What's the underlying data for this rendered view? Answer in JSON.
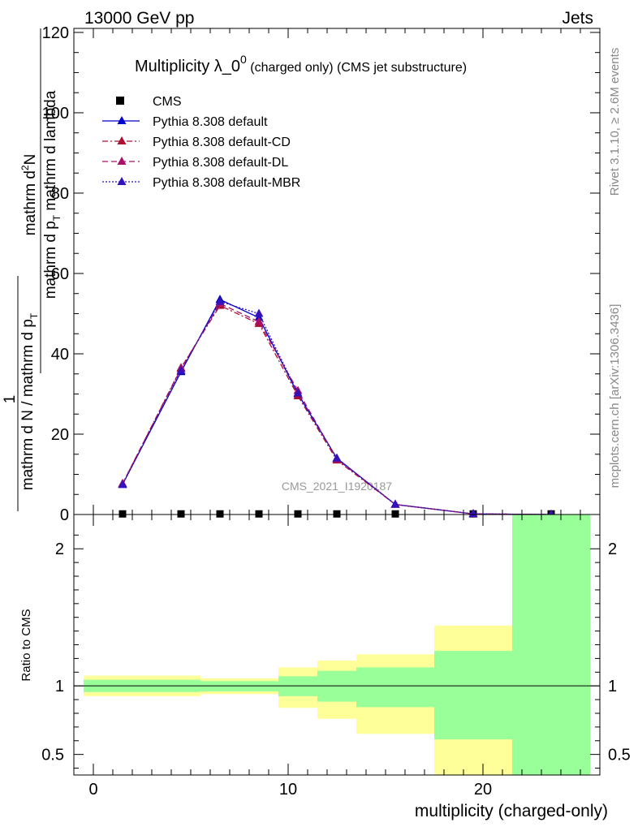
{
  "header": {
    "left": "13000 GeV pp",
    "right": "Jets"
  },
  "side_labels": {
    "rivet": "Rivet 3.1.10, ≥ 2.6M events",
    "mcplots": "mcplots.cern.ch [arXiv:1306.3436]"
  },
  "chart_data": [
    {
      "type": "line",
      "title": "Multiplicity λ_0",
      "title_sup": "0",
      "title_suffix": " (charged only) (CMS jet substructure)",
      "analysis_label": "CMS_2021_I1920187",
      "ylabel": {
        "numerator": "mathrm d",
        "numerator_sup": "2",
        "numerator_rest": "N",
        "denominator": "mathrm d p",
        "denominator_sub": "T",
        "denominator_rest": " mathrm d lambda",
        "prefix_numerator": "1",
        "prefix_denominator": "mathrm d N / mathrm d p",
        "prefix_denominator_sub": "T"
      },
      "xlim": [
        -1,
        26
      ],
      "ylim": [
        0,
        121
      ],
      "yticks": [
        0,
        20,
        40,
        60,
        80,
        100,
        120
      ],
      "ytick_labels": [
        "0",
        "20",
        "40",
        "60",
        "80",
        "100",
        "120"
      ],
      "series": [
        {
          "name": "CMS",
          "style": "marker",
          "color": "#000000",
          "x": [
            1.5,
            4.5,
            6.5,
            8.5,
            10.5,
            12.5,
            15.5,
            19.5,
            23.5
          ],
          "y": [
            0.15,
            0.15,
            0.15,
            0.15,
            0.15,
            0.15,
            0.15,
            0.15,
            0.15
          ]
        },
        {
          "name": "Pythia 8.308 default",
          "style": "solid",
          "color": "#0000cc",
          "x": [
            1.5,
            4.5,
            6.5,
            8.5,
            10.5,
            12.5,
            15.5,
            19.5,
            23.5
          ],
          "y": [
            7.5,
            35.5,
            53.5,
            49.0,
            30.0,
            14.0,
            2.5,
            0.15,
            0.0
          ]
        },
        {
          "name": "Pythia 8.308 default-CD",
          "style": "dashdot",
          "color": "#aa1133",
          "x": [
            1.5,
            4.5,
            6.5,
            8.5,
            10.5,
            12.5,
            15.5,
            19.5,
            23.5
          ],
          "y": [
            7.6,
            36.5,
            52.0,
            47.5,
            29.5,
            13.5,
            2.5,
            0.15,
            0.0
          ]
        },
        {
          "name": "Pythia 8.308 default-DL",
          "style": "dashed",
          "color": "#aa1166",
          "x": [
            1.5,
            4.5,
            6.5,
            8.5,
            10.5,
            12.5,
            15.5,
            19.5,
            23.5
          ],
          "y": [
            7.7,
            36.3,
            52.5,
            48.0,
            30.8,
            13.8,
            2.5,
            0.15,
            0.0
          ]
        },
        {
          "name": "Pythia 8.308 default-MBR",
          "style": "dotted",
          "color": "#3311bb",
          "x": [
            1.5,
            4.5,
            6.5,
            8.5,
            10.5,
            12.5,
            15.5,
            19.5,
            23.5
          ],
          "y": [
            7.4,
            35.8,
            53.0,
            50.0,
            30.2,
            14.0,
            2.5,
            0.15,
            0.0
          ]
        }
      ],
      "legend_placement": "top-left"
    },
    {
      "type": "area",
      "ylabel": "Ratio to CMS",
      "xlabel": "multiplicity (charged-only)",
      "xlim": [
        -1,
        26
      ],
      "ylim": [
        0.35,
        2.25
      ],
      "xticks": [
        0,
        10,
        20
      ],
      "xtick_labels": [
        "0",
        "10",
        "20"
      ],
      "yticks": [
        0.5,
        1,
        2
      ],
      "ytick_labels": [
        "0.5",
        "1",
        "2"
      ],
      "reference_line": 1,
      "bins": [
        {
          "lo": -0.5,
          "hi": 5.5,
          "inner": [
            0.955,
            1.045
          ],
          "outer": [
            0.925,
            1.075
          ]
        },
        {
          "lo": 5.5,
          "hi": 9.5,
          "inner": [
            0.96,
            1.035
          ],
          "outer": [
            0.94,
            1.055
          ]
        },
        {
          "lo": 9.5,
          "hi": 10.5,
          "inner": [
            0.925,
            1.07
          ],
          "outer": [
            0.84,
            1.135
          ]
        },
        {
          "lo": 10.5,
          "hi": 11.5,
          "inner": [
            0.925,
            1.07
          ],
          "outer": [
            0.84,
            1.135
          ]
        },
        {
          "lo": 11.5,
          "hi": 13.5,
          "inner": [
            0.885,
            1.11
          ],
          "outer": [
            0.76,
            1.185
          ]
        },
        {
          "lo": 13.5,
          "hi": 17.5,
          "inner": [
            0.845,
            1.135
          ],
          "outer": [
            0.65,
            1.23
          ]
        },
        {
          "lo": 17.5,
          "hi": 21.5,
          "inner": [
            0.61,
            1.255
          ],
          "outer": [
            0.35,
            1.44
          ]
        },
        {
          "lo": 21.5,
          "hi": 25.5,
          "inner": [
            0.35,
            2.25
          ],
          "outer": [
            0.35,
            2.25
          ]
        }
      ],
      "inner_color": "#99ff99",
      "outer_color": "#ffff99"
    }
  ]
}
